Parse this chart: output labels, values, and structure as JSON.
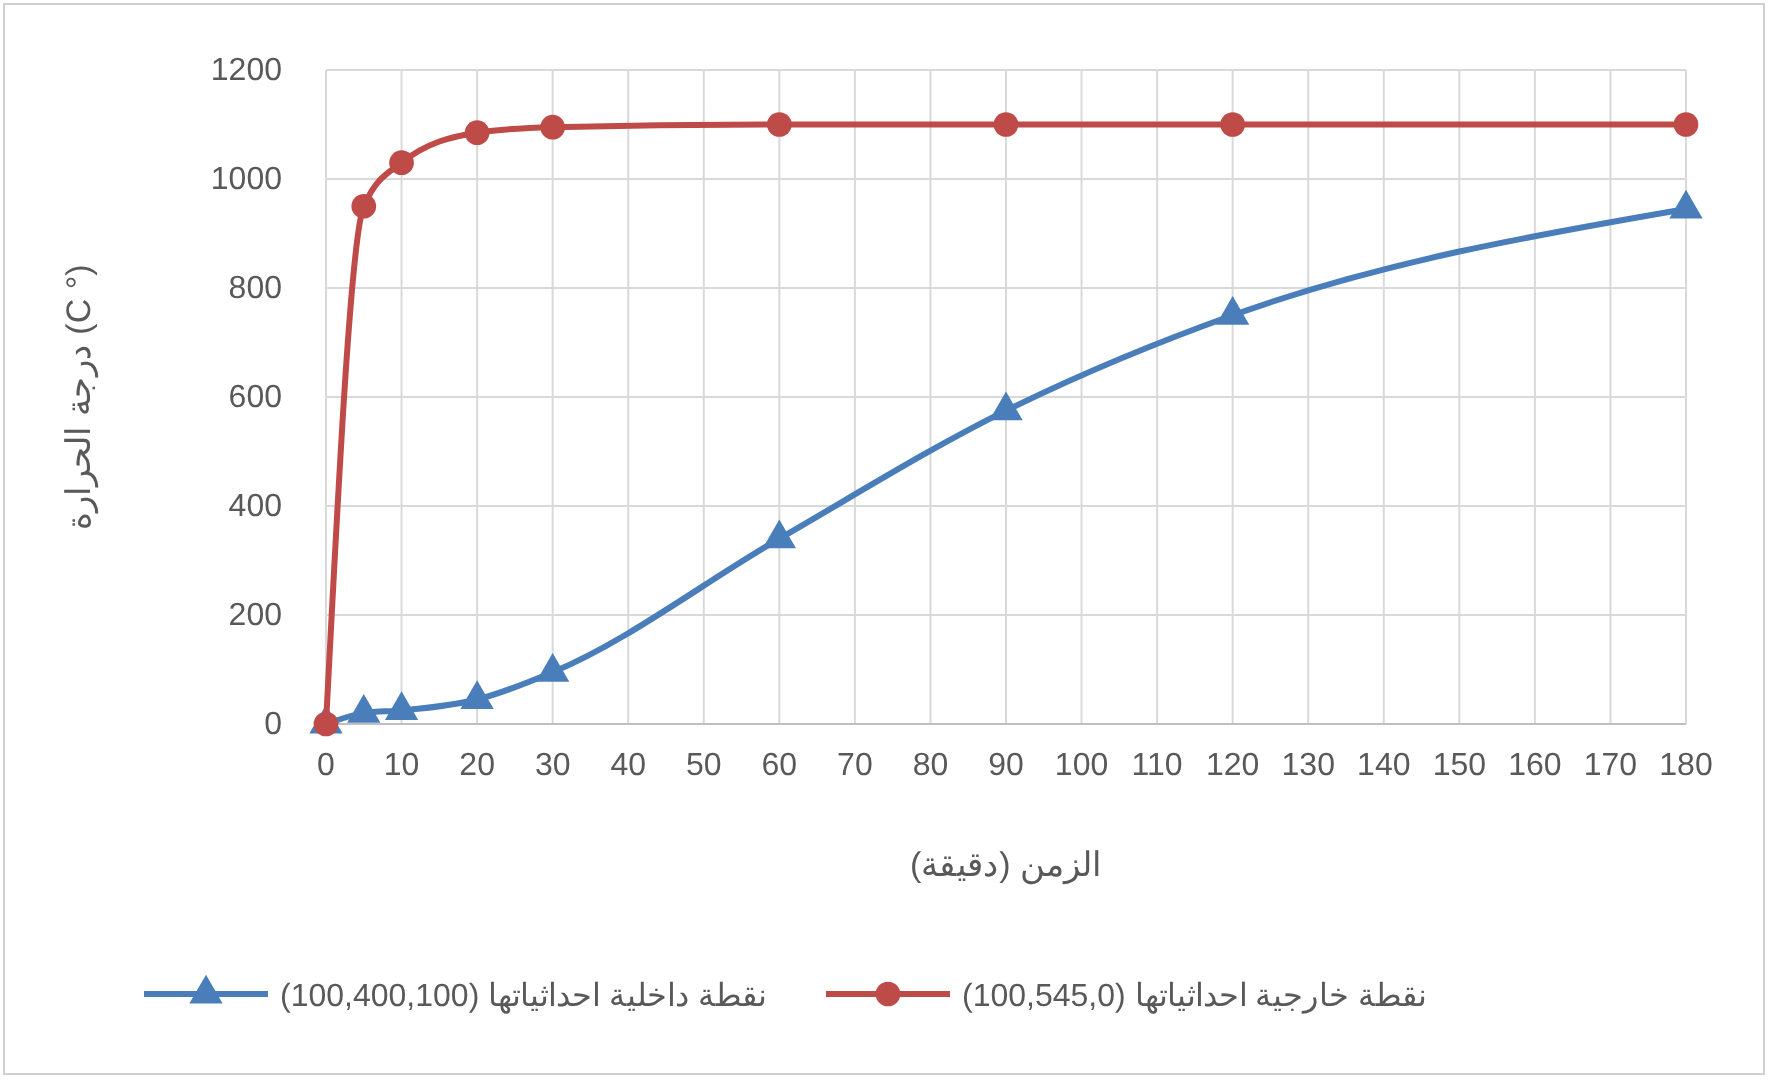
{
  "chart_data": {
    "type": "line",
    "xlabel": "الزمن (دقيقة)",
    "ylabel": "درجة الحرارة (C °)",
    "x": [
      0,
      5,
      10,
      20,
      30,
      60,
      90,
      120,
      180
    ],
    "series": [
      {
        "name": "نقطة داخلية احداثياتها (100,400,100)",
        "color": "#4a7ebb",
        "marker": "triangle",
        "values": [
          0,
          20,
          25,
          45,
          95,
          340,
          575,
          750,
          945
        ]
      },
      {
        "name": "نقطة خارجية احداثياتها (100,545,0)",
        "color": "#be4b48",
        "marker": "circle",
        "values": [
          0,
          950,
          1030,
          1085,
          1095,
          1100,
          1100,
          1100,
          1100
        ]
      }
    ],
    "xlim": [
      0,
      180
    ],
    "xticks": [
      0,
      10,
      20,
      30,
      40,
      50,
      60,
      70,
      80,
      90,
      100,
      110,
      120,
      130,
      140,
      150,
      160,
      170,
      180
    ],
    "ylim": [
      0,
      1200
    ],
    "yticks": [
      0,
      200,
      400,
      600,
      800,
      1000,
      1200
    ],
    "grid": true,
    "legend": "bottom",
    "line_style": "solid"
  }
}
